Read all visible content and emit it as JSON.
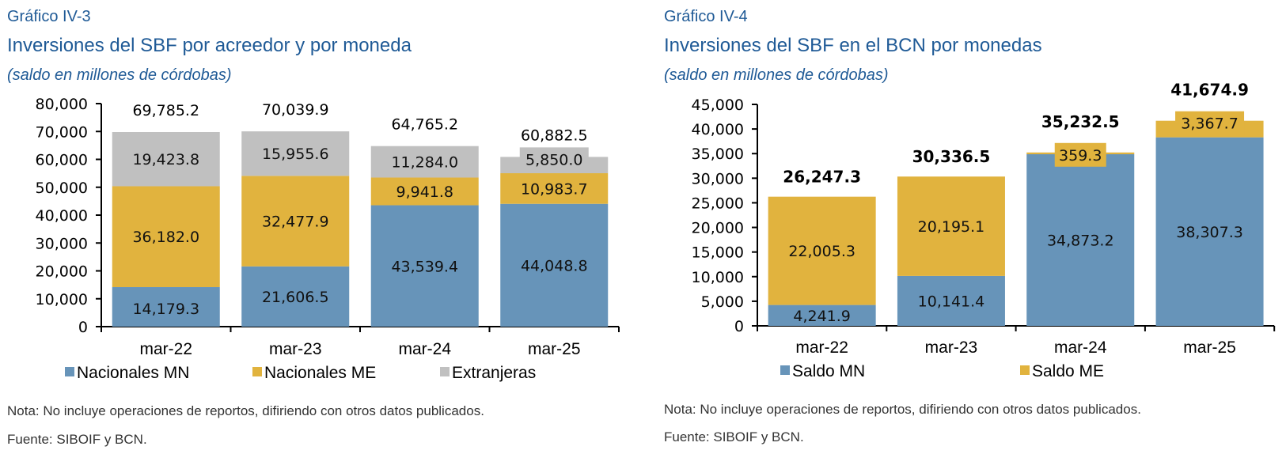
{
  "chart_data": [
    {
      "type": "bar",
      "stacked": true,
      "figure_number": "Gráfico IV-3",
      "title": "Inversiones del SBF por acreedor y por moneda",
      "subtitle": "(saldo en millones de córdobas)",
      "xlabel": "",
      "ylabel": "",
      "categories": [
        "mar-22",
        "mar-23",
        "mar-24",
        "mar-25"
      ],
      "series": [
        {
          "name": "Nacionales MN",
          "color": "#6794b9",
          "values": [
            14179.3,
            21606.5,
            43539.4,
            44048.8
          ],
          "labels": [
            "14,179.3",
            "21,606.5",
            "43,539.4",
            "44,048.8"
          ]
        },
        {
          "name": "Nacionales ME",
          "color": "#e1b33e",
          "values": [
            36182.0,
            32477.9,
            9941.8,
            10983.7
          ],
          "labels": [
            "36,182.0",
            "32,477.9",
            "9,941.8",
            "10,983.7"
          ]
        },
        {
          "name": "Extranjeras",
          "color": "#c0c0c0",
          "values": [
            19423.8,
            15955.6,
            11284.0,
            5850.0
          ],
          "labels": [
            "19,423.8",
            "15,955.6",
            "11,284.0",
            "5,850.0"
          ]
        }
      ],
      "totals": [
        69785.2,
        70039.9,
        64765.2,
        60882.5
      ],
      "total_labels": [
        "69,785.2",
        "70,039.9",
        "64,765.2",
        "60,882.5"
      ],
      "totals_bold": false,
      "ylim": [
        0,
        80000
      ],
      "yticks": [
        0,
        10000,
        20000,
        30000,
        40000,
        50000,
        60000,
        70000,
        80000
      ],
      "ytick_labels": [
        "0",
        "10,000",
        "20,000",
        "30,000",
        "40,000",
        "50,000",
        "60,000",
        "70,000",
        "80,000"
      ],
      "grid": false,
      "legend_position": "bottom",
      "note": "Nota: No incluye operaciones de reportos, difiriendo con otros datos publicados.",
      "source": "Fuente: SIBOIF y BCN."
    },
    {
      "type": "bar",
      "stacked": true,
      "figure_number": "Gráfico IV-4",
      "title": "Inversiones del SBF en el BCN por monedas",
      "subtitle": "(saldo en millones de córdobas)",
      "xlabel": "",
      "ylabel": "",
      "categories": [
        "mar-22",
        "mar-23",
        "mar-24",
        "mar-25"
      ],
      "series": [
        {
          "name": "Saldo MN",
          "color": "#6794b9",
          "values": [
            4241.9,
            10141.4,
            34873.2,
            38307.3
          ],
          "labels": [
            "4,241.9",
            "10,141.4",
            "34,873.2",
            "38,307.3"
          ]
        },
        {
          "name": "Saldo ME",
          "color": "#e1b33e",
          "values": [
            22005.3,
            20195.1,
            359.3,
            3367.7
          ],
          "labels": [
            "22,005.3",
            "20,195.1",
            "359.3",
            "3,367.7"
          ]
        }
      ],
      "totals": [
        26247.3,
        30336.5,
        35232.5,
        41674.9
      ],
      "total_labels": [
        "26,247.3",
        "30,336.5",
        "35,232.5",
        "41,674.9"
      ],
      "totals_bold": true,
      "ylim": [
        0,
        45000
      ],
      "yticks": [
        0,
        5000,
        10000,
        15000,
        20000,
        25000,
        30000,
        35000,
        40000,
        45000
      ],
      "ytick_labels": [
        "0",
        "5,000",
        "10,000",
        "15,000",
        "20,000",
        "25,000",
        "30,000",
        "35,000",
        "40,000",
        "45,000"
      ],
      "grid": false,
      "legend_position": "bottom",
      "note": "Nota: No incluye operaciones de reportos, difiriendo con otros datos publicados.",
      "source": "Fuente: SIBOIF y BCN."
    }
  ]
}
